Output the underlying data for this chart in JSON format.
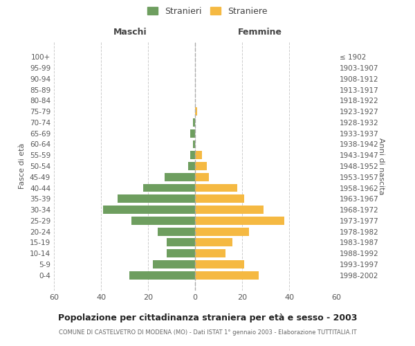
{
  "age_groups": [
    "0-4",
    "5-9",
    "10-14",
    "15-19",
    "20-24",
    "25-29",
    "30-34",
    "35-39",
    "40-44",
    "45-49",
    "50-54",
    "55-59",
    "60-64",
    "65-69",
    "70-74",
    "75-79",
    "80-84",
    "85-89",
    "90-94",
    "95-99",
    "100+"
  ],
  "birth_years": [
    "1998-2002",
    "1993-1997",
    "1988-1992",
    "1983-1987",
    "1978-1982",
    "1973-1977",
    "1968-1972",
    "1963-1967",
    "1958-1962",
    "1953-1957",
    "1948-1952",
    "1943-1947",
    "1938-1942",
    "1933-1937",
    "1928-1932",
    "1923-1927",
    "1918-1922",
    "1913-1917",
    "1908-1912",
    "1903-1907",
    "≤ 1902"
  ],
  "males": [
    28,
    18,
    12,
    12,
    16,
    27,
    39,
    33,
    22,
    13,
    3,
    2,
    1,
    2,
    1,
    0,
    0,
    0,
    0,
    0,
    0
  ],
  "females": [
    27,
    21,
    13,
    16,
    23,
    38,
    29,
    21,
    18,
    6,
    5,
    3,
    0,
    0,
    0,
    1,
    0,
    0,
    0,
    0,
    0
  ],
  "male_color": "#6e9e5f",
  "female_color": "#f5b942",
  "title": "Popolazione per cittadinanza straniera per età e sesso - 2003",
  "subtitle": "COMUNE DI CASTELVETRO DI MODENA (MO) - Dati ISTAT 1° gennaio 2003 - Elaborazione TUTTITALIA.IT",
  "ylabel_left": "Fasce di età",
  "ylabel_right": "Anni di nascita",
  "xlabel_left": "Maschi",
  "xlabel_right": "Femmine",
  "legend_male": "Stranieri",
  "legend_female": "Straniere",
  "xlim": 60,
  "background_color": "#ffffff",
  "grid_color": "#cccccc"
}
